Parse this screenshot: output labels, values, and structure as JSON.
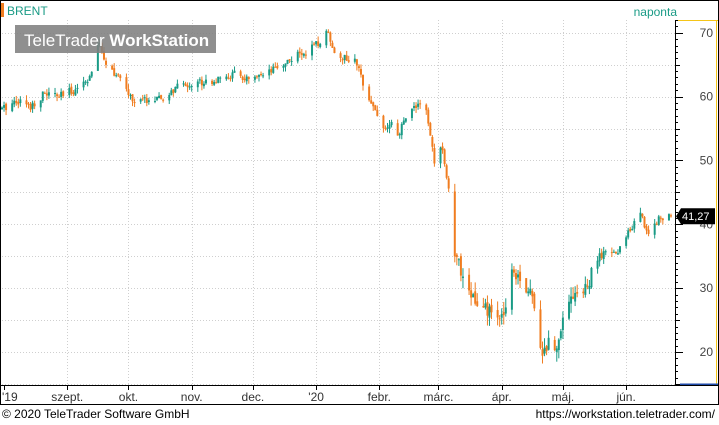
{
  "header": {
    "instrument": "BRENT",
    "interval": "naponta",
    "watermark_brand": "TeleTrader ",
    "watermark_product": "WorkStation"
  },
  "footer": {
    "copyright": "© 2020 TeleTrader Software GmbH",
    "url": "https://workstation.teletrader.com/"
  },
  "colors": {
    "up": "#1a9b86",
    "down": "#f07d20",
    "grid": "#cfcfcf",
    "axis_accent": "#f5c518",
    "last_label_bg": "#000000",
    "last_label_text": "#ffffff",
    "header_text": "#1a9b86"
  },
  "chart_data": {
    "type": "candlestick",
    "title": "BRENT",
    "interval": "naponta",
    "ylim": [
      15,
      72
    ],
    "yticks": [
      20,
      30,
      40,
      50,
      60,
      70
    ],
    "y_side": "right",
    "grid": true,
    "last_value_label": "41,27",
    "last_value": 41.27,
    "x_labels": [
      {
        "label": "'19",
        "date": "2019-08-01"
      },
      {
        "label": "szept.",
        "date": "2019-09-01"
      },
      {
        "label": "okt.",
        "date": "2019-10-01"
      },
      {
        "label": "nov.",
        "date": "2019-11-01"
      },
      {
        "label": "dec.",
        "date": "2019-12-01"
      },
      {
        "label": "'20",
        "date": "2020-01-01"
      },
      {
        "label": "febr.",
        "date": "2020-02-01"
      },
      {
        "label": "márc.",
        "date": "2020-03-01"
      },
      {
        "label": "ápr.",
        "date": "2020-04-01"
      },
      {
        "label": "máj.",
        "date": "2020-05-01"
      },
      {
        "label": "jún.",
        "date": "2020-06-01"
      }
    ],
    "x_start": "2019-07-31",
    "x_end": "2020-06-23",
    "close_path": [
      [
        "2019-07-31",
        58.0
      ],
      [
        "2019-08-07",
        59.5
      ],
      [
        "2019-08-14",
        58.5
      ],
      [
        "2019-08-21",
        60.5
      ],
      [
        "2019-08-28",
        60.0
      ],
      [
        "2019-09-04",
        61.0
      ],
      [
        "2019-09-10",
        62.5
      ],
      [
        "2019-09-13",
        63.5
      ],
      [
        "2019-09-16",
        68.5
      ],
      [
        "2019-09-20",
        65.5
      ],
      [
        "2019-09-27",
        62.5
      ],
      [
        "2019-10-04",
        59.0
      ],
      [
        "2019-10-10",
        59.5
      ],
      [
        "2019-10-18",
        59.5
      ],
      [
        "2019-10-25",
        61.5
      ],
      [
        "2019-11-01",
        62.0
      ],
      [
        "2019-11-08",
        62.5
      ],
      [
        "2019-11-15",
        62.5
      ],
      [
        "2019-11-22",
        63.5
      ],
      [
        "2019-11-29",
        62.5
      ],
      [
        "2019-12-06",
        63.0
      ],
      [
        "2019-12-13",
        64.5
      ],
      [
        "2019-12-20",
        66.0
      ],
      [
        "2019-12-27",
        67.0
      ],
      [
        "2020-01-03",
        68.5
      ],
      [
        "2020-01-07",
        70.5
      ],
      [
        "2020-01-09",
        67.5
      ],
      [
        "2020-01-15",
        66.0
      ],
      [
        "2020-01-20",
        65.5
      ],
      [
        "2020-01-27",
        60.0
      ],
      [
        "2020-02-03",
        55.0
      ],
      [
        "2020-02-07",
        55.5
      ],
      [
        "2020-02-10",
        53.5
      ],
      [
        "2020-02-14",
        57.0
      ],
      [
        "2020-02-20",
        59.0
      ],
      [
        "2020-02-24",
        57.5
      ],
      [
        "2020-02-28",
        50.0
      ],
      [
        "2020-03-03",
        52.0
      ],
      [
        "2020-03-06",
        45.5
      ],
      [
        "2020-03-09",
        34.5
      ],
      [
        "2020-03-12",
        33.0
      ],
      [
        "2020-03-16",
        30.0
      ],
      [
        "2020-03-20",
        27.0
      ],
      [
        "2020-03-27",
        26.0
      ],
      [
        "2020-04-01",
        25.0
      ],
      [
        "2020-04-06",
        33.0
      ],
      [
        "2020-04-10",
        32.0
      ],
      [
        "2020-04-14",
        29.5
      ],
      [
        "2020-04-17",
        28.0
      ],
      [
        "2020-04-21",
        19.5
      ],
      [
        "2020-04-24",
        21.5
      ],
      [
        "2020-04-28",
        20.5
      ],
      [
        "2020-05-01",
        26.5
      ],
      [
        "2020-05-07",
        29.5
      ],
      [
        "2020-05-12",
        29.5
      ],
      [
        "2020-05-18",
        34.5
      ],
      [
        "2020-05-22",
        35.5
      ],
      [
        "2020-05-28",
        35.5
      ],
      [
        "2020-06-03",
        39.5
      ],
      [
        "2020-06-08",
        41.5
      ],
      [
        "2020-06-12",
        38.5
      ],
      [
        "2020-06-17",
        41.0
      ],
      [
        "2020-06-23",
        41.27
      ]
    ]
  }
}
